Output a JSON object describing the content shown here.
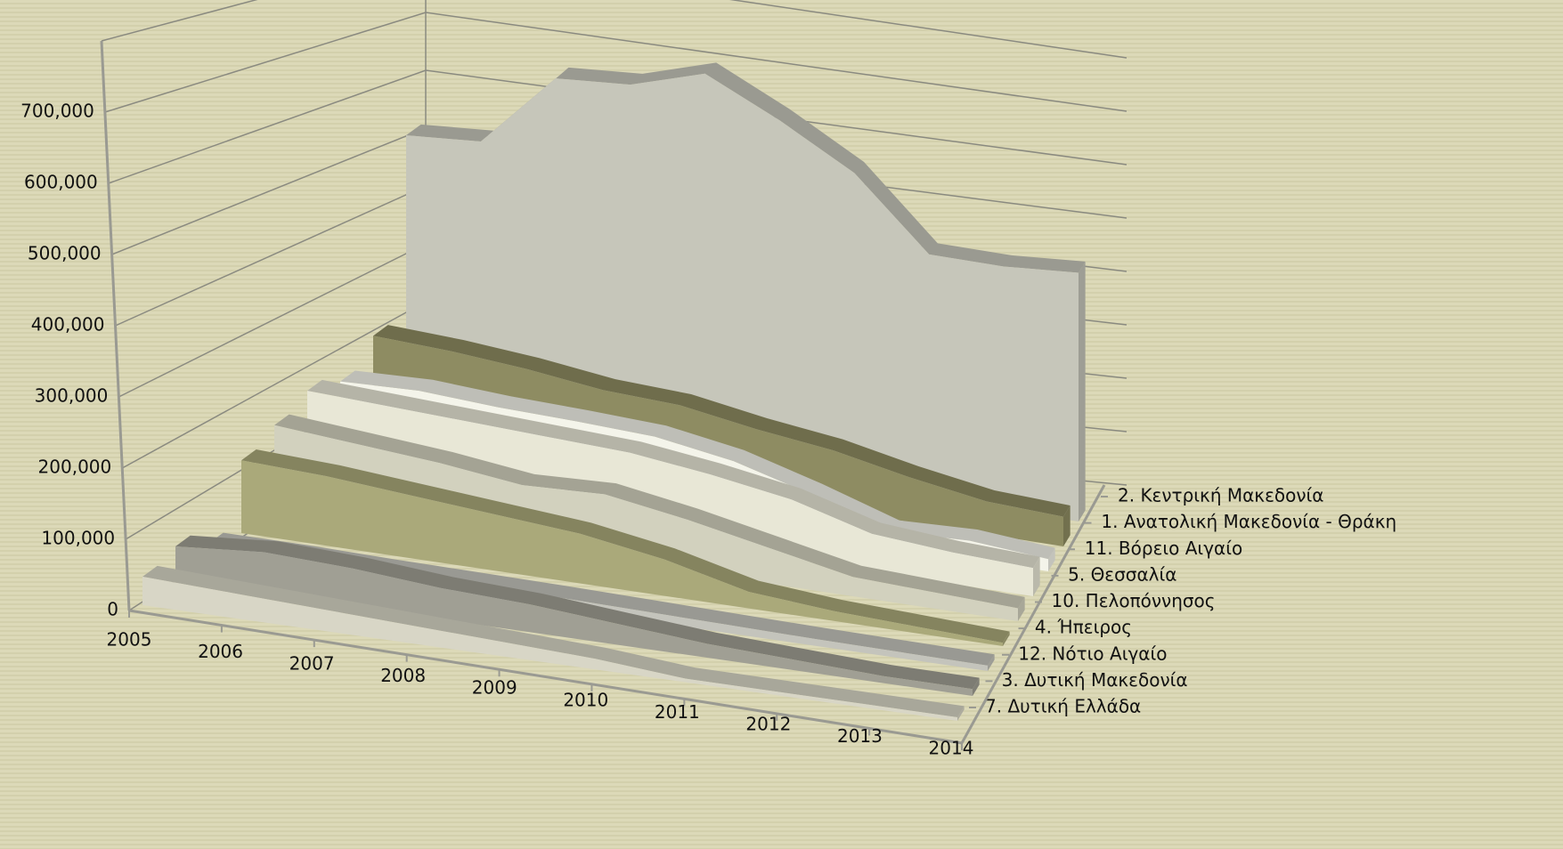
{
  "chart_data": {
    "type": "area3d",
    "categories": [
      "2005",
      "2006",
      "2007",
      "2008",
      "2009",
      "2010",
      "2011",
      "2012",
      "2013",
      "2014"
    ],
    "ylim": [
      0,
      800000
    ],
    "yticks": [
      {
        "value": 0,
        "label": "0"
      },
      {
        "value": 100000,
        "label": "100,000"
      },
      {
        "value": 200000,
        "label": "200,000"
      },
      {
        "value": 300000,
        "label": "300,000"
      },
      {
        "value": 400000,
        "label": "400,000"
      },
      {
        "value": 500000,
        "label": "500,000"
      },
      {
        "value": 600000,
        "label": "600,000"
      },
      {
        "value": 700000,
        "label": "700,000"
      }
    ],
    "grid": true,
    "series": [
      {
        "name": "2. Κεντρική Μακεδονία",
        "color": "#c6c6ba",
        "values": [
          480000,
          490000,
          620000,
          630000,
          670000,
          610000,
          540000,
          420000,
          420000,
          430000
        ]
      },
      {
        "name": "1. Ανατολική Μακεδονία - Θράκη",
        "color": "#8e8c62",
        "values": [
          170000,
          165000,
          155000,
          140000,
          135000,
          115000,
          100000,
          75000,
          55000,
          50000
        ]
      },
      {
        "name": "11. Βόρειο Αιγαίο",
        "color": "#f4f4ea",
        "values": [
          130000,
          135000,
          128000,
          125000,
          120000,
          100000,
          65000,
          25000,
          30000,
          20000
        ]
      },
      {
        "name": "5. Θεσσαλία",
        "color": "#e8e7d6",
        "values": [
          150000,
          145000,
          140000,
          135000,
          130000,
          115000,
          95000,
          60000,
          50000,
          45000
        ]
      },
      {
        "name": "10. Πελοπόννησος",
        "color": "#d2d1be",
        "values": [
          130000,
          120000,
          110000,
          95000,
          100000,
          80000,
          55000,
          30000,
          25000,
          20000
        ]
      },
      {
        "name": "4. Ήπειρος",
        "color": "#aaa97a",
        "values": [
          110000,
          105000,
          95000,
          85000,
          75000,
          55000,
          25000,
          15000,
          10000,
          5000
        ]
      },
      {
        "name": "12. Νότιο Αιγαίο",
        "color": "#c4c4bc",
        "values": [
          20000,
          20000,
          18000,
          17000,
          16000,
          14000,
          12000,
          10000,
          9000,
          8000
        ]
      },
      {
        "name": "3. Δυτική Μακεδονία",
        "color": "#a09f94",
        "values": [
          50000,
          60000,
          55000,
          45000,
          40000,
          30000,
          20000,
          15000,
          10000,
          10000
        ]
      },
      {
        "name": "7. Δυτική Ελλάδα",
        "color": "#d8d6c6",
        "values": [
          40000,
          35000,
          30000,
          25000,
          20000,
          15000,
          5000,
          5000,
          5000,
          5000
        ]
      }
    ]
  }
}
